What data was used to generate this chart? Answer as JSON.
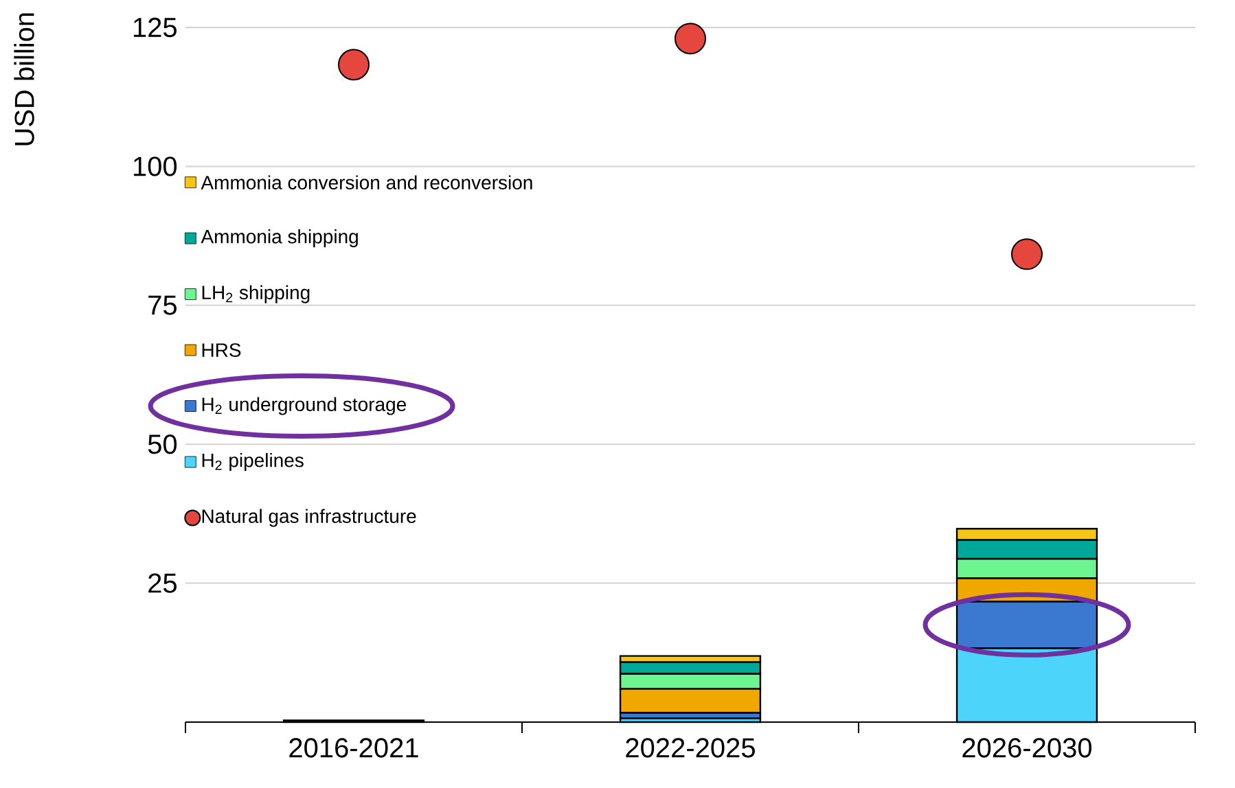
{
  "chart_data": {
    "type": "bar",
    "stacked": true,
    "ylabel": "USD billion",
    "categories": [
      "2016-2021",
      "2022-2025",
      "2026-2030"
    ],
    "series": [
      {
        "name": "H$_{2}$ pipelines",
        "color": "#4dd4fb",
        "values": [
          0.3,
          0.7,
          13.3
        ]
      },
      {
        "name": "H$_{2}$ underground  storage",
        "color": "#3b78d0",
        "values": [
          0,
          1.0,
          8.4
        ]
      },
      {
        "name": "HRS",
        "color": "#f0a800",
        "values": [
          0,
          4.3,
          4.2
        ]
      },
      {
        "name": "LH$_{2}$ shipping",
        "color": "#6cf590",
        "values": [
          0,
          2.7,
          3.5
        ]
      },
      {
        "name": "Ammonia shipping",
        "color": "#00a89a",
        "values": [
          0,
          2.1,
          3.4
        ]
      },
      {
        "name": "Ammonia conversion and reconversion",
        "color": "#f5c518",
        "values": [
          0,
          1.1,
          2.0
        ]
      },
      {
        "name": "Natural gas infrastructure",
        "type": "scatter",
        "marker": "circle",
        "color": "#e5463d",
        "values": [
          118.3,
          123,
          84.2
        ]
      }
    ],
    "ylim": [
      0,
      125
    ],
    "yticks": [
      25,
      50,
      75,
      100,
      125
    ],
    "grid": "y",
    "legend": "left"
  }
}
